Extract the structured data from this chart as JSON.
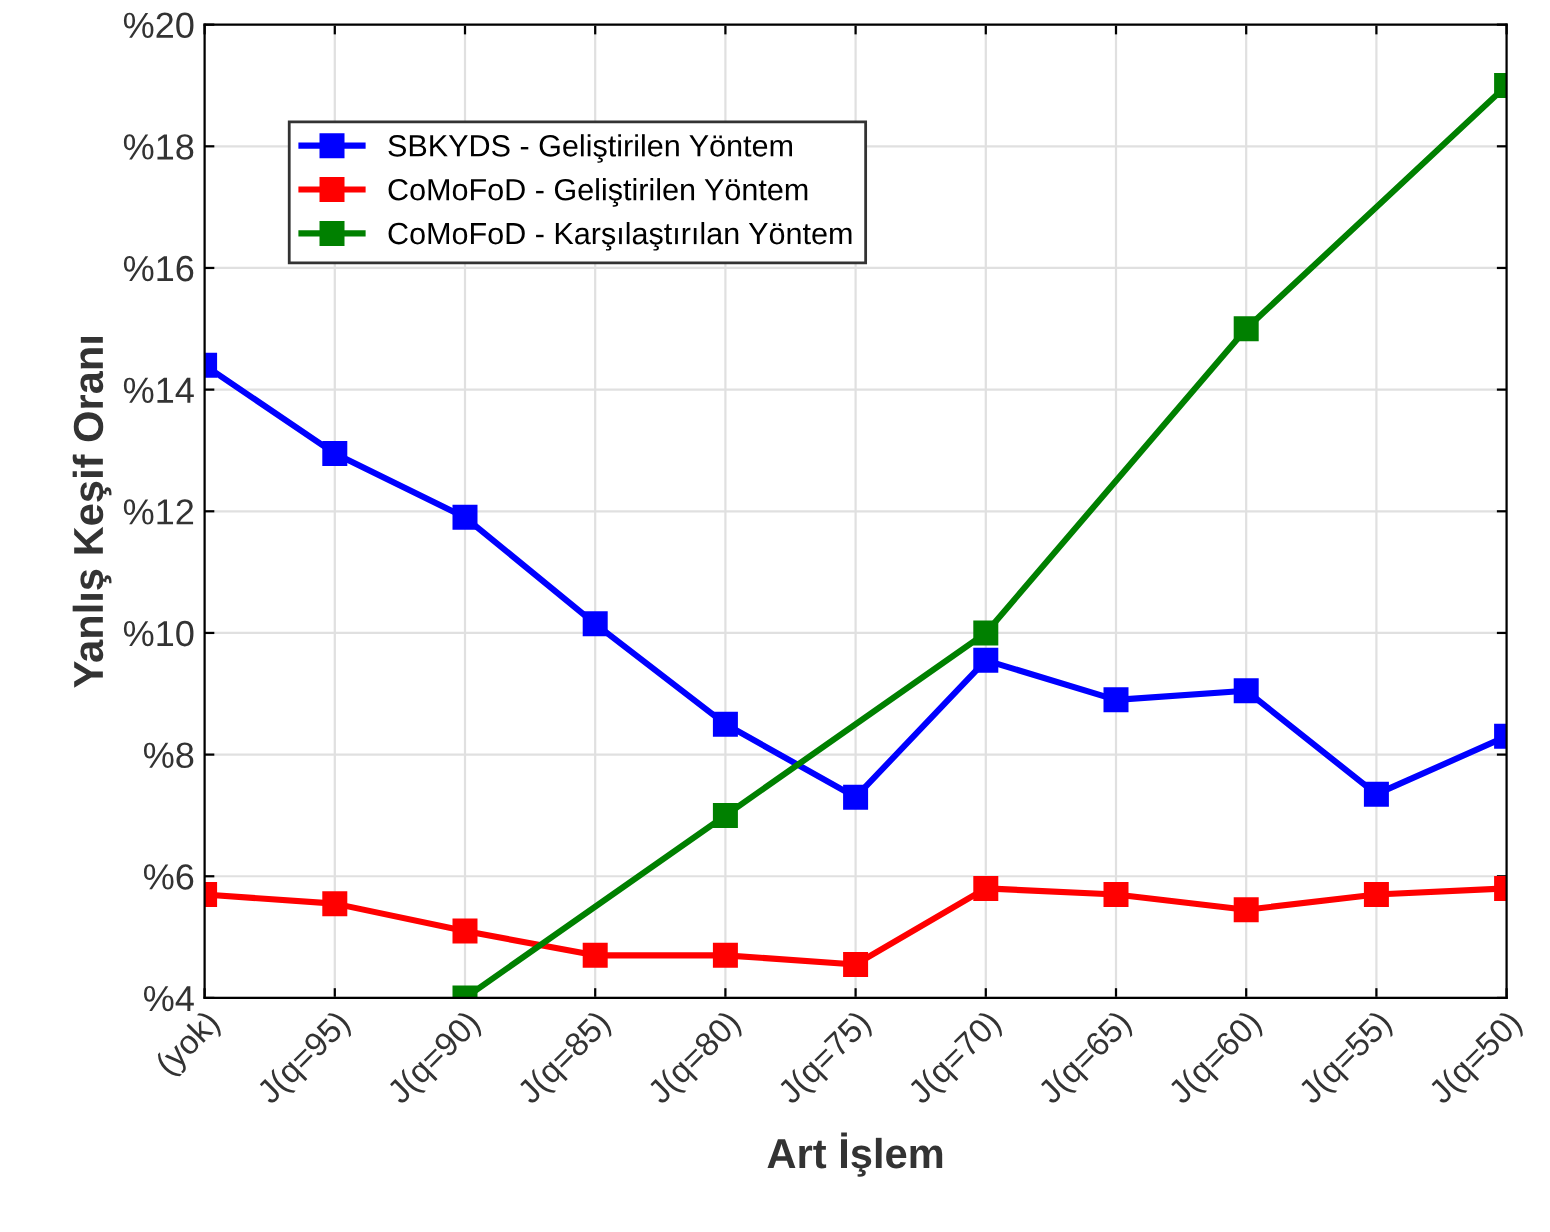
{
  "chart_data": {
    "type": "line",
    "xlabel": "Art İşlem",
    "ylabel": "Yanlış Keşif Oranı",
    "categories": [
      "(yok)",
      "J(q=95)",
      "J(q=90)",
      "J(q=85)",
      "J(q=80)",
      "J(q=75)",
      "J(q=70)",
      "J(q=65)",
      "J(q=60)",
      "J(q=55)",
      "J(q=50)"
    ],
    "series": [
      {
        "name": "SBKYDS - Geliştirilen Yöntem",
        "color": "#0000ff",
        "values": [
          14.4,
          12.95,
          11.9,
          10.15,
          8.5,
          7.3,
          9.55,
          8.9,
          9.05,
          7.35,
          8.3
        ]
      },
      {
        "name": "CoMoFoD - Geliştirilen Yöntem",
        "color": "#ff0000",
        "values": [
          5.7,
          5.55,
          5.1,
          4.7,
          4.7,
          4.55,
          5.8,
          5.7,
          5.45,
          5.7,
          5.8
        ]
      },
      {
        "name": "CoMoFoD - Karşılaştırılan Yöntem",
        "color": "#008000",
        "values": [
          null,
          null,
          4,
          null,
          7,
          null,
          10,
          null,
          15,
          null,
          19
        ]
      }
    ],
    "ylim": [
      4,
      20
    ],
    "yticks": [
      {
        "value": 4,
        "label": "%4"
      },
      {
        "value": 6,
        "label": "%6"
      },
      {
        "value": 8,
        "label": "%8"
      },
      {
        "value": 10,
        "label": "%10"
      },
      {
        "value": 12,
        "label": "%12"
      },
      {
        "value": 14,
        "label": "%14"
      },
      {
        "value": 16,
        "label": "%16"
      },
      {
        "value": 18,
        "label": "%18"
      },
      {
        "value": 20,
        "label": "%20"
      }
    ],
    "grid": true,
    "legend": "top left",
    "marker": "square",
    "line_style": "solid"
  }
}
